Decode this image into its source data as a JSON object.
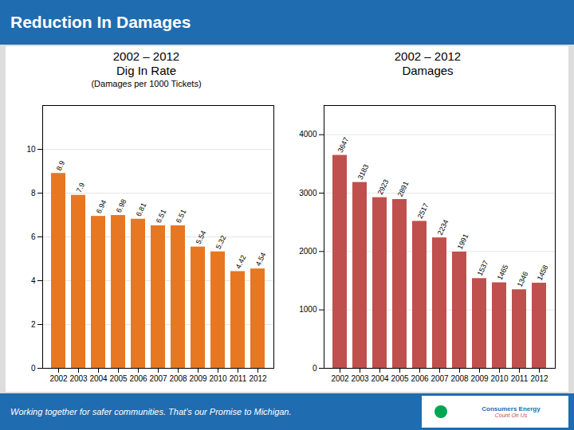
{
  "title": "Reduction In Damages",
  "annotations": [
    "Working together for safer communities. That’s our Promise to Michigan.",
    "Consumers Energy",
    "Count On Us"
  ],
  "chart_data": [
    {
      "type": "bar",
      "title": "2002 – 2012\nDig In Rate",
      "subtitle": "(Damages per 1000 Tickets)",
      "categories": [
        "2002",
        "2003",
        "2004",
        "2005",
        "2006",
        "2007",
        "2008",
        "2009",
        "2010",
        "2011",
        "2012"
      ],
      "values": [
        8.9,
        7.9,
        6.94,
        6.98,
        6.81,
        6.51,
        6.51,
        5.54,
        5.32,
        4.42,
        4.54
      ],
      "color": "#E87722",
      "ylim": [
        0,
        12
      ],
      "yticks": [
        0,
        2,
        4,
        6,
        8,
        10
      ],
      "grid": true,
      "data_labels": true
    },
    {
      "type": "bar",
      "title": "2002 – 2012\nDamages",
      "categories": [
        "2002",
        "2003",
        "2004",
        "2005",
        "2006",
        "2007",
        "2008",
        "2009",
        "2010",
        "2011",
        "2012"
      ],
      "values": [
        3647,
        3183,
        2923,
        2891,
        2517,
        2234,
        1991,
        1537,
        1465,
        1346,
        1458
      ],
      "color": "#C0504D",
      "ylim": [
        0,
        4500
      ],
      "yticks": [
        0,
        1000,
        2000,
        3000,
        4000
      ],
      "grid": true,
      "data_labels": true
    }
  ]
}
